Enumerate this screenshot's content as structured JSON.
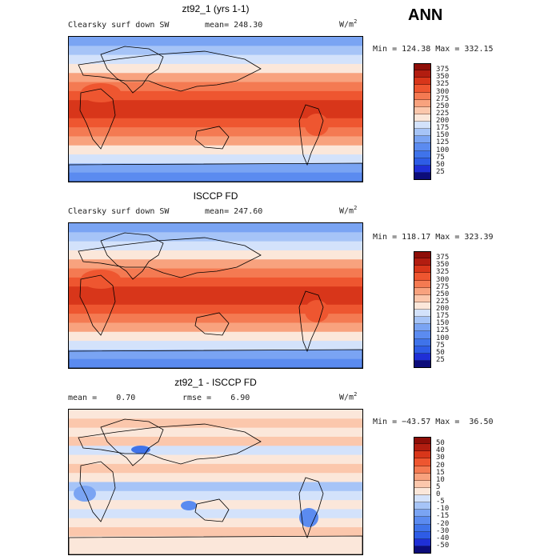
{
  "header": {
    "season": "ANN"
  },
  "panels": [
    {
      "title": "zt92_1 (yrs 1-1)",
      "field": "Clearsky surf down SW",
      "stat_label": "mean=",
      "stat_value": "248.30",
      "units_base": "W/m",
      "units_exp": "2",
      "minmax": "Min = 124.38 Max = 332.15",
      "kind": "abs"
    },
    {
      "title": "ISCCP FD",
      "field": "Clearsky surf down SW",
      "stat_label": "mean=",
      "stat_value": "247.60",
      "units_base": "W/m",
      "units_exp": "2",
      "minmax": "Min = 118.17 Max = 323.39",
      "kind": "abs"
    },
    {
      "title": "zt92_1 - ISCCP FD",
      "mean_text": "mean =    0.70",
      "rmse_text": "rmse =    6.90",
      "units_base": "W/m",
      "units_exp": "2",
      "minmax": "Min = −43.57 Max =  36.50",
      "kind": "diff"
    }
  ],
  "chart_data": [
    {
      "type": "heatmap",
      "title": "zt92_1 (yrs 1-1)",
      "variable": "Clearsky surf down SW",
      "units": "W/m2",
      "mean": 248.3,
      "min": 124.38,
      "max": 332.15,
      "colorbar_levels": [
        25,
        50,
        75,
        100,
        125,
        150,
        175,
        200,
        225,
        250,
        275,
        300,
        325,
        350,
        375
      ],
      "colors": [
        "#0c0c7a",
        "#1f2fd6",
        "#2e5ce6",
        "#3f73ea",
        "#5b8bf0",
        "#7aa4f3",
        "#a6c4f7",
        "#d3e2fb",
        "#fbe7da",
        "#fbc7ac",
        "#f8a27e",
        "#f47a52",
        "#ee5630",
        "#d8361a",
        "#b21d10",
        "#8e0e08"
      ]
    },
    {
      "type": "heatmap",
      "title": "ISCCP FD",
      "variable": "Clearsky surf down SW",
      "units": "W/m2",
      "mean": 247.6,
      "min": 118.17,
      "max": 323.39,
      "colorbar_levels": [
        25,
        50,
        75,
        100,
        125,
        150,
        175,
        200,
        225,
        250,
        275,
        300,
        325,
        350,
        375
      ],
      "colors": [
        "#0c0c7a",
        "#1f2fd6",
        "#2e5ce6",
        "#3f73ea",
        "#5b8bf0",
        "#7aa4f3",
        "#a6c4f7",
        "#d3e2fb",
        "#fbe7da",
        "#fbc7ac",
        "#f8a27e",
        "#f47a52",
        "#ee5630",
        "#d8361a",
        "#b21d10",
        "#8e0e08"
      ]
    },
    {
      "type": "heatmap",
      "title": "zt92_1 - ISCCP FD",
      "units": "W/m2",
      "mean": 0.7,
      "rmse": 6.9,
      "min": -43.57,
      "max": 36.5,
      "colorbar_levels": [
        -50,
        -40,
        -30,
        -20,
        -15,
        -10,
        -5,
        0,
        5,
        10,
        15,
        20,
        30,
        40,
        50
      ],
      "colors": [
        "#0c0c7a",
        "#1f2fd6",
        "#2e5ce6",
        "#3f73ea",
        "#5b8bf0",
        "#7aa4f3",
        "#a6c4f7",
        "#d3e2fb",
        "#fbe7da",
        "#fbc7ac",
        "#f8a27e",
        "#f47a52",
        "#ee5630",
        "#d8361a",
        "#b21d10",
        "#8e0e08"
      ]
    }
  ]
}
